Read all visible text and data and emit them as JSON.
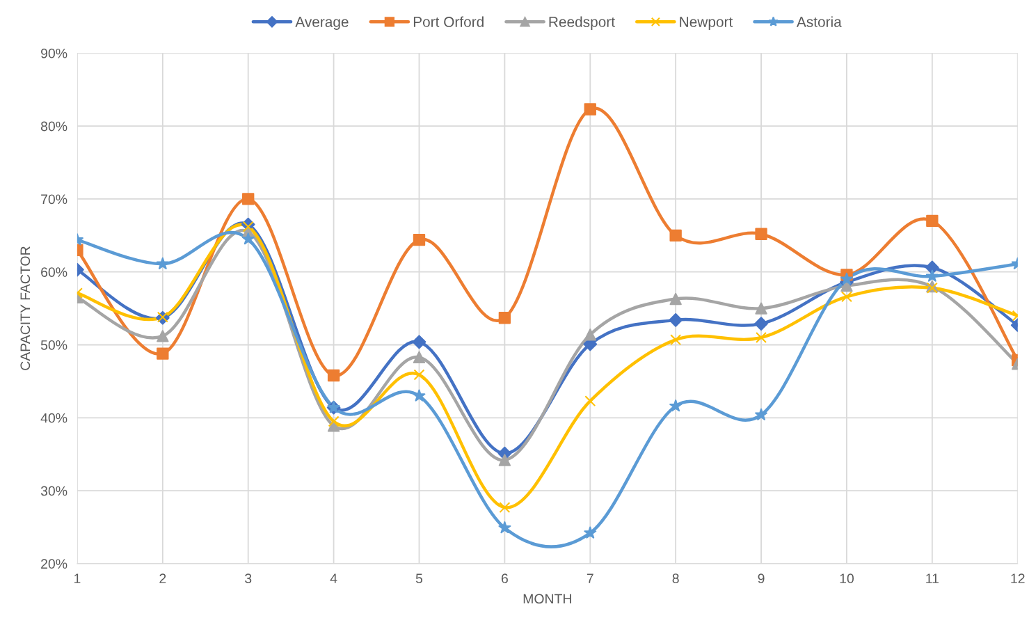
{
  "chart_data": {
    "type": "line",
    "xlabel": "MONTH",
    "ylabel": "CAPACITY FACTOR",
    "x": [
      1,
      2,
      3,
      4,
      5,
      6,
      7,
      8,
      9,
      10,
      11,
      12
    ],
    "xlim": [
      1,
      12
    ],
    "xticks": [
      1,
      2,
      3,
      4,
      5,
      6,
      7,
      8,
      9,
      10,
      11,
      12
    ],
    "ylim": [
      20,
      90
    ],
    "yticks": [
      {
        "value": 20,
        "label": "20%"
      },
      {
        "value": 30,
        "label": "30%"
      },
      {
        "value": 40,
        "label": "40%"
      },
      {
        "value": 50,
        "label": "50%"
      },
      {
        "value": 60,
        "label": "60%"
      },
      {
        "value": 70,
        "label": "70%"
      },
      {
        "value": 80,
        "label": "80%"
      },
      {
        "value": 90,
        "label": "90%"
      }
    ],
    "grid": true,
    "legend": "top",
    "series": [
      {
        "name": "Average",
        "color": "#4472c4",
        "marker": "diamond",
        "values": [
          60.3,
          53.7,
          66.5,
          41.4,
          50.4,
          35.1,
          50.1,
          53.4,
          52.9,
          58.6,
          60.6,
          52.7
        ]
      },
      {
        "name": "Port Orford",
        "color": "#ed7d31",
        "marker": "square",
        "values": [
          63.0,
          48.8,
          70.0,
          45.8,
          64.4,
          53.7,
          82.3,
          65.0,
          65.2,
          59.6,
          67.0,
          47.9
        ]
      },
      {
        "name": "Reedsport",
        "color": "#a5a5a5",
        "marker": "triangle",
        "values": [
          56.5,
          51.2,
          65.5,
          38.9,
          48.3,
          34.2,
          51.4,
          56.3,
          55.0,
          58.1,
          58.0,
          47.4
        ]
      },
      {
        "name": "Newport",
        "color": "#ffc000",
        "marker": "cross",
        "values": [
          57.1,
          53.8,
          66.2,
          39.5,
          45.9,
          27.7,
          42.3,
          50.7,
          51.0,
          56.6,
          57.8,
          54.0
        ]
      },
      {
        "name": "Astoria",
        "color": "#5b9bd5",
        "marker": "star",
        "values": [
          64.4,
          61.1,
          64.5,
          41.4,
          43.0,
          24.9,
          24.2,
          41.6,
          40.4,
          59.0,
          59.4,
          61.1
        ]
      }
    ]
  }
}
